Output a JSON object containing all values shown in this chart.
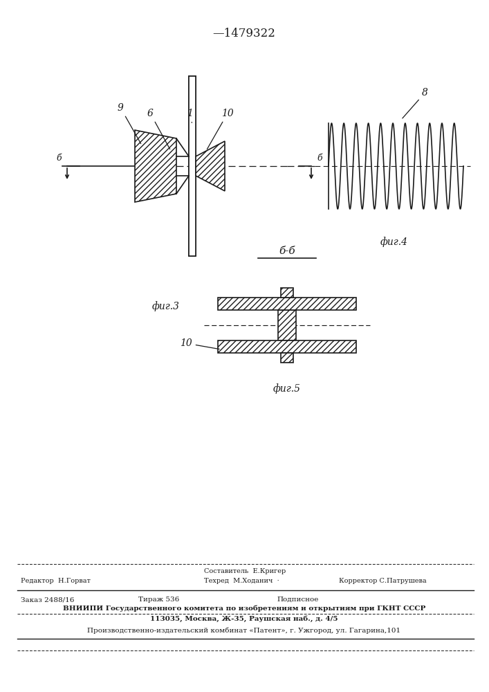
{
  "patent_number": "—1479322",
  "background_color": "#ffffff",
  "line_color": "#1a1a1a",
  "fig3_label": "фиг.3",
  "fig4_label": "фиг.4",
  "fig5_label": "фиг.5",
  "footer_comp": "Составитель  Е.Кригер",
  "footer_editor": "Редактор  Н.Горват",
  "footer_tech": "Техред  М.Ходанич  ·",
  "footer_correct": "Корректор С.Патрушева",
  "footer_order": "Заказ 2488/16",
  "footer_tirazh": "Тираж 536",
  "footer_podp": "Подписное",
  "footer_vniip": "ВНИИПИ Государственного комитета по изобретениям и открытиям при ГКНТ СССР",
  "footer_address": "113035, Москва, Ж-35, Раушская наб., д. 4/5",
  "footer_plant": "Производственно-издательский комбинат «Патент», г. Ужгород, ул. Гагарина,101"
}
